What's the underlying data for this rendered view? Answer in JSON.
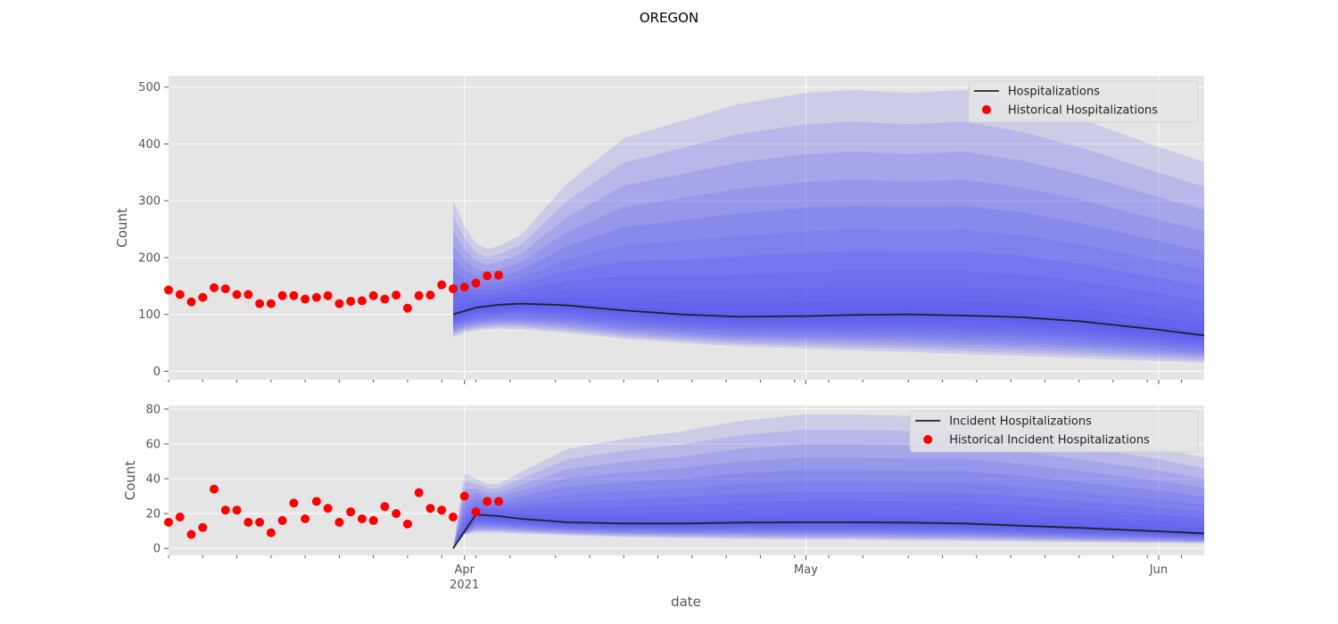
{
  "chart_data": {
    "type": "line",
    "title": "OREGON",
    "xlabel": "date",
    "x_ticks": [
      {
        "date": "2021-04-01",
        "label": "Apr",
        "sublabel": "2021"
      },
      {
        "date": "2021-05-01",
        "label": "May",
        "sublabel": ""
      },
      {
        "date": "2021-06-01",
        "label": "Jun",
        "sublabel": ""
      }
    ],
    "xlim": [
      "2021-03-06",
      "2021-06-05"
    ],
    "panels": [
      {
        "id": "hospitalizations",
        "ylabel": "Count",
        "ylim": [
          -15,
          520
        ],
        "yticks": [
          0,
          100,
          200,
          300,
          400,
          500
        ],
        "legend_position": "top-right",
        "series": [
          {
            "name": "Hospitalizations",
            "kind": "line",
            "color": "#222222",
            "x": [
              "2021-03-31",
              "2021-04-02",
              "2021-04-04",
              "2021-04-06",
              "2021-04-10",
              "2021-04-15",
              "2021-04-20",
              "2021-04-25",
              "2021-05-01",
              "2021-05-05",
              "2021-05-10",
              "2021-05-15",
              "2021-05-20",
              "2021-05-25",
              "2021-06-01",
              "2021-06-05"
            ],
            "values": [
              100,
              112,
              117,
              119,
              116,
              107,
              100,
              96,
              97,
              99,
              100,
              98,
              95,
              88,
              73,
              63
            ]
          },
          {
            "name": "Historical Hospitalizations",
            "kind": "scatter",
            "color": "#ff0000",
            "x": [
              "2021-03-06",
              "2021-03-07",
              "2021-03-08",
              "2021-03-09",
              "2021-03-10",
              "2021-03-11",
              "2021-03-12",
              "2021-03-13",
              "2021-03-14",
              "2021-03-15",
              "2021-03-16",
              "2021-03-17",
              "2021-03-18",
              "2021-03-19",
              "2021-03-20",
              "2021-03-21",
              "2021-03-22",
              "2021-03-23",
              "2021-03-24",
              "2021-03-25",
              "2021-03-26",
              "2021-03-27",
              "2021-03-28",
              "2021-03-29",
              "2021-03-30",
              "2021-03-31",
              "2021-04-01",
              "2021-04-02",
              "2021-04-03",
              "2021-04-04"
            ],
            "values": [
              143,
              135,
              122,
              130,
              147,
              145,
              135,
              135,
              119,
              119,
              133,
              133,
              127,
              130,
              133,
              119,
              123,
              124,
              133,
              127,
              134,
              111,
              133,
              134,
              152,
              145,
              148,
              155,
              168,
              169
            ]
          }
        ],
        "forecast_bands": {
          "color": "#4a4af2",
          "x": [
            "2021-03-31",
            "2021-04-01",
            "2021-04-02",
            "2021-04-03",
            "2021-04-04",
            "2021-04-06",
            "2021-04-10",
            "2021-04-15",
            "2021-04-20",
            "2021-04-25",
            "2021-05-01",
            "2021-05-05",
            "2021-05-10",
            "2021-05-15",
            "2021-05-20",
            "2021-05-25",
            "2021-06-01",
            "2021-06-05"
          ],
          "lower": [
            60,
            68,
            72,
            74,
            75,
            74,
            68,
            57,
            50,
            44,
            40,
            37,
            34,
            30,
            27,
            23,
            18,
            15
          ],
          "upper": [
            300,
            255,
            225,
            215,
            220,
            240,
            330,
            410,
            440,
            470,
            490,
            495,
            490,
            495,
            475,
            445,
            395,
            368
          ]
        }
      },
      {
        "id": "incident-hospitalizations",
        "ylabel": "Count",
        "ylim": [
          -4,
          82
        ],
        "yticks": [
          0,
          20,
          40,
          60,
          80
        ],
        "legend_position": "top-right",
        "series": [
          {
            "name": "Incident Hospitalizations",
            "kind": "line",
            "color": "#222222",
            "x": [
              "2021-03-31",
              "2021-04-02",
              "2021-04-04",
              "2021-04-06",
              "2021-04-10",
              "2021-04-15",
              "2021-04-20",
              "2021-04-25",
              "2021-05-01",
              "2021-05-05",
              "2021-05-10",
              "2021-05-15",
              "2021-05-20",
              "2021-05-25",
              "2021-06-01",
              "2021-06-05"
            ],
            "values": [
              0,
              19.5,
              18.5,
              17,
              15,
              14.3,
              14.3,
              14.8,
              15,
              15,
              14.8,
              14.3,
              13,
              11.8,
              9.8,
              8.6
            ]
          },
          {
            "name": "Historical Incident Hospitalizations",
            "kind": "scatter",
            "color": "#ff0000",
            "x": [
              "2021-03-06",
              "2021-03-07",
              "2021-03-08",
              "2021-03-09",
              "2021-03-10",
              "2021-03-11",
              "2021-03-12",
              "2021-03-13",
              "2021-03-14",
              "2021-03-15",
              "2021-03-16",
              "2021-03-17",
              "2021-03-18",
              "2021-03-19",
              "2021-03-20",
              "2021-03-21",
              "2021-03-22",
              "2021-03-23",
              "2021-03-24",
              "2021-03-25",
              "2021-03-26",
              "2021-03-27",
              "2021-03-28",
              "2021-03-29",
              "2021-03-30",
              "2021-03-31",
              "2021-04-01",
              "2021-04-02",
              "2021-04-03",
              "2021-04-04"
            ],
            "values": [
              15,
              18,
              8,
              12,
              34,
              22,
              22,
              15,
              15,
              9,
              16,
              26,
              17,
              27,
              23,
              15,
              21,
              17,
              16,
              24,
              20,
              14,
              32,
              23,
              22,
              18,
              30,
              21,
              27,
              27
            ]
          }
        ],
        "forecast_bands": {
          "color": "#4a4af2",
          "x": [
            "2021-03-31",
            "2021-04-01",
            "2021-04-02",
            "2021-04-03",
            "2021-04-04",
            "2021-04-06",
            "2021-04-10",
            "2021-04-15",
            "2021-04-20",
            "2021-04-25",
            "2021-05-01",
            "2021-05-05",
            "2021-05-10",
            "2021-05-15",
            "2021-05-20",
            "2021-05-25",
            "2021-06-01",
            "2021-06-05"
          ],
          "lower": [
            0,
            8,
            9,
            9,
            9,
            8.5,
            7.5,
            6.5,
            6,
            5.5,
            5,
            5,
            4.5,
            4.3,
            4,
            3.5,
            3,
            2.8
          ],
          "upper": [
            0,
            43,
            40,
            37,
            37,
            44,
            57,
            63,
            67,
            73,
            77,
            77,
            76,
            76,
            72,
            66,
            58,
            52
          ]
        }
      }
    ]
  }
}
